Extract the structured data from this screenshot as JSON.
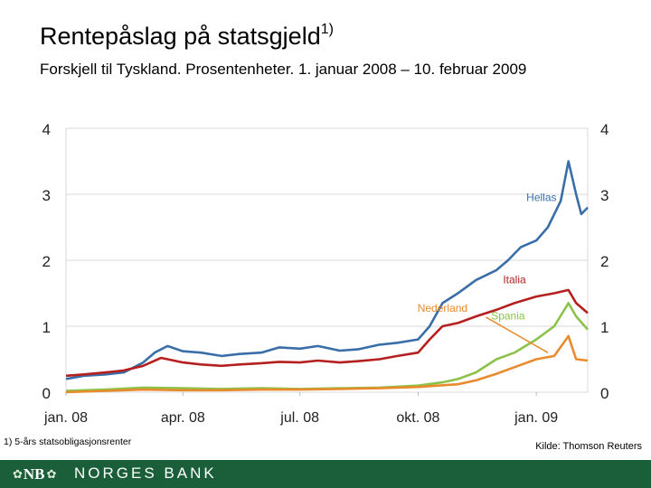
{
  "title": "Rentepåslag på statsgjeld",
  "title_sup": "1)",
  "subtitle": "Forskjell til Tyskland. Prosentenheter. 1. januar 2008 – 10. februar 2009",
  "footnote": "1)  5-års statsobligasjonsrenter",
  "source": "Kilde: Thomson Reuters",
  "bank": {
    "name": "NORGES BANK",
    "logo_text": "NB"
  },
  "chart_data": {
    "type": "line",
    "x_type": "date",
    "xlim": [
      "2008-01-01",
      "2009-02-10"
    ],
    "ylim": [
      0,
      4
    ],
    "y_ticks": [
      0,
      1,
      2,
      3,
      4
    ],
    "x_ticks": [
      {
        "date": "2008-01-01",
        "label": "jan. 08"
      },
      {
        "date": "2008-04-01",
        "label": "apr. 08"
      },
      {
        "date": "2008-07-01",
        "label": "jul. 08"
      },
      {
        "date": "2008-10-01",
        "label": "okt. 08"
      },
      {
        "date": "2009-01-01",
        "label": "jan. 09"
      }
    ],
    "grid": true,
    "series": [
      {
        "name": "Hellas",
        "color": "#3a6ea8",
        "points": [
          [
            "2008-01-01",
            0.2
          ],
          [
            "2008-01-15",
            0.25
          ],
          [
            "2008-02-01",
            0.27
          ],
          [
            "2008-02-15",
            0.3
          ],
          [
            "2008-03-01",
            0.45
          ],
          [
            "2008-03-10",
            0.6
          ],
          [
            "2008-03-20",
            0.7
          ],
          [
            "2008-04-01",
            0.62
          ],
          [
            "2008-04-15",
            0.6
          ],
          [
            "2008-05-01",
            0.55
          ],
          [
            "2008-05-15",
            0.58
          ],
          [
            "2008-06-01",
            0.6
          ],
          [
            "2008-06-15",
            0.68
          ],
          [
            "2008-07-01",
            0.66
          ],
          [
            "2008-07-15",
            0.7
          ],
          [
            "2008-08-01",
            0.63
          ],
          [
            "2008-08-15",
            0.65
          ],
          [
            "2008-09-01",
            0.72
          ],
          [
            "2008-09-15",
            0.75
          ],
          [
            "2008-10-01",
            0.8
          ],
          [
            "2008-10-10",
            1.0
          ],
          [
            "2008-10-20",
            1.35
          ],
          [
            "2008-11-01",
            1.5
          ],
          [
            "2008-11-15",
            1.7
          ],
          [
            "2008-12-01",
            1.85
          ],
          [
            "2008-12-10",
            2.0
          ],
          [
            "2008-12-20",
            2.2
          ],
          [
            "2009-01-01",
            2.3
          ],
          [
            "2009-01-10",
            2.5
          ],
          [
            "2009-01-20",
            2.9
          ],
          [
            "2009-01-26",
            3.5
          ],
          [
            "2009-02-01",
            3.0
          ],
          [
            "2009-02-05",
            2.7
          ],
          [
            "2009-02-10",
            2.8
          ]
        ]
      },
      {
        "name": "Italia",
        "color": "#b51f1f",
        "points": [
          [
            "2008-01-01",
            0.25
          ],
          [
            "2008-01-15",
            0.27
          ],
          [
            "2008-02-01",
            0.3
          ],
          [
            "2008-02-15",
            0.33
          ],
          [
            "2008-03-01",
            0.4
          ],
          [
            "2008-03-15",
            0.52
          ],
          [
            "2008-04-01",
            0.45
          ],
          [
            "2008-04-15",
            0.42
          ],
          [
            "2008-05-01",
            0.4
          ],
          [
            "2008-05-15",
            0.42
          ],
          [
            "2008-06-01",
            0.44
          ],
          [
            "2008-06-15",
            0.46
          ],
          [
            "2008-07-01",
            0.45
          ],
          [
            "2008-07-15",
            0.48
          ],
          [
            "2008-08-01",
            0.45
          ],
          [
            "2008-08-15",
            0.47
          ],
          [
            "2008-09-01",
            0.5
          ],
          [
            "2008-09-15",
            0.55
          ],
          [
            "2008-10-01",
            0.6
          ],
          [
            "2008-10-10",
            0.8
          ],
          [
            "2008-10-20",
            1.0
          ],
          [
            "2008-11-01",
            1.05
          ],
          [
            "2008-11-15",
            1.15
          ],
          [
            "2008-12-01",
            1.25
          ],
          [
            "2008-12-15",
            1.35
          ],
          [
            "2009-01-01",
            1.45
          ],
          [
            "2009-01-15",
            1.5
          ],
          [
            "2009-01-26",
            1.55
          ],
          [
            "2009-02-01",
            1.35
          ],
          [
            "2009-02-10",
            1.2
          ]
        ]
      },
      {
        "name": "Spania",
        "color": "#8cc24a",
        "points": [
          [
            "2008-01-01",
            0.02
          ],
          [
            "2008-02-01",
            0.04
          ],
          [
            "2008-03-01",
            0.07
          ],
          [
            "2008-04-01",
            0.06
          ],
          [
            "2008-05-01",
            0.05
          ],
          [
            "2008-06-01",
            0.06
          ],
          [
            "2008-07-01",
            0.05
          ],
          [
            "2008-08-01",
            0.06
          ],
          [
            "2008-09-01",
            0.07
          ],
          [
            "2008-10-01",
            0.1
          ],
          [
            "2008-10-20",
            0.15
          ],
          [
            "2008-11-01",
            0.2
          ],
          [
            "2008-11-15",
            0.3
          ],
          [
            "2008-12-01",
            0.5
          ],
          [
            "2008-12-15",
            0.6
          ],
          [
            "2009-01-01",
            0.8
          ],
          [
            "2009-01-15",
            1.0
          ],
          [
            "2009-01-26",
            1.35
          ],
          [
            "2009-02-01",
            1.15
          ],
          [
            "2009-02-10",
            0.95
          ]
        ]
      },
      {
        "name": "Nederland",
        "color": "#e88b2e",
        "points": [
          [
            "2008-01-01",
            0.0
          ],
          [
            "2008-02-01",
            0.02
          ],
          [
            "2008-03-01",
            0.04
          ],
          [
            "2008-04-01",
            0.03
          ],
          [
            "2008-05-01",
            0.03
          ],
          [
            "2008-06-01",
            0.04
          ],
          [
            "2008-07-01",
            0.04
          ],
          [
            "2008-08-01",
            0.05
          ],
          [
            "2008-09-01",
            0.06
          ],
          [
            "2008-10-01",
            0.08
          ],
          [
            "2008-11-01",
            0.12
          ],
          [
            "2008-11-15",
            0.18
          ],
          [
            "2008-12-01",
            0.28
          ],
          [
            "2008-12-15",
            0.38
          ],
          [
            "2009-01-01",
            0.5
          ],
          [
            "2009-01-15",
            0.55
          ],
          [
            "2009-01-26",
            0.85
          ],
          [
            "2009-02-01",
            0.5
          ],
          [
            "2009-02-10",
            0.48
          ]
        ]
      }
    ],
    "annotations": [
      {
        "series": "Hellas",
        "text": "Hellas",
        "color": "#3a6ea8",
        "at": [
          "2009-01-05",
          2.9
        ]
      },
      {
        "series": "Italia",
        "text": "Italia",
        "color": "#b51f1f",
        "at": [
          "2008-12-15",
          1.65
        ]
      },
      {
        "series": "Spania",
        "text": "Spania",
        "color": "#8cc24a",
        "at": [
          "2008-12-10",
          1.1
        ]
      },
      {
        "series": "Nederland",
        "text": "Nederland",
        "color": "#e88b2e",
        "at": [
          "2008-10-20",
          1.22
        ],
        "arrow_to": [
          "2009-01-10",
          0.6
        ]
      }
    ]
  }
}
